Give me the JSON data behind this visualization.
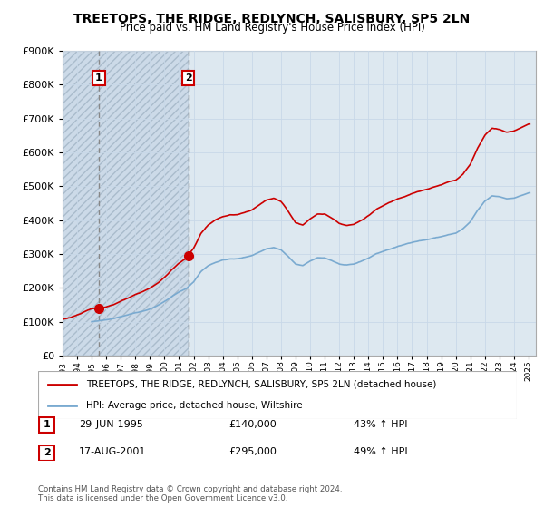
{
  "title": "TREETOPS, THE RIDGE, REDLYNCH, SALISBURY, SP5 2LN",
  "subtitle": "Price paid vs. HM Land Registry's House Price Index (HPI)",
  "legend_label_red": "TREETOPS, THE RIDGE, REDLYNCH, SALISBURY, SP5 2LN (detached house)",
  "legend_label_blue": "HPI: Average price, detached house, Wiltshire",
  "footer": "Contains HM Land Registry data © Crown copyright and database right 2024.\nThis data is licensed under the Open Government Licence v3.0.",
  "transactions": [
    {
      "num": 1,
      "date": 1995.49,
      "price": 140000,
      "label": "29-JUN-1995",
      "pct": "43% ↑ HPI"
    },
    {
      "num": 2,
      "date": 2001.63,
      "price": 295000,
      "label": "17-AUG-2001",
      "pct": "49% ↑ HPI"
    }
  ],
  "ylim": [
    0,
    900000
  ],
  "xlim_start": 1993.0,
  "xlim_end": 2025.5,
  "hatch_end": 2001.63,
  "red_line_color": "#cc0000",
  "blue_line_color": "#7aaad0",
  "dashed_line_color": "#999999",
  "grid_color": "#c8d8e8",
  "plot_bg_color": "#dde8f0",
  "hatch_pattern_color": "#c0d0e0"
}
